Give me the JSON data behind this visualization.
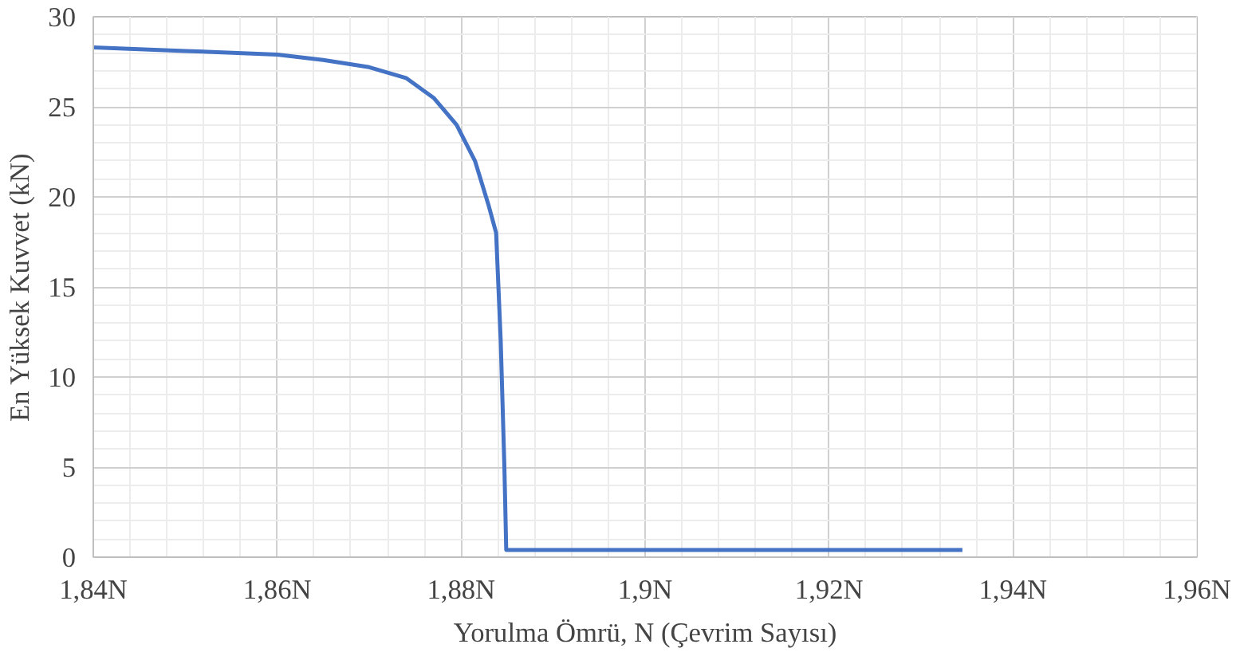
{
  "chart_data": {
    "type": "line",
    "xlabel": "Yorulma Ömrü, N (Çevrim Sayısı)",
    "ylabel": "En Yüksek Kuvvet (kN)",
    "x": [
      1.84,
      1.85,
      1.86,
      1.865,
      1.87,
      1.874,
      1.877,
      1.8795,
      1.8815,
      1.883,
      1.8838,
      1.8843,
      1.8847,
      1.8849,
      1.9345
    ],
    "series": [
      {
        "color": "#4472c4",
        "values": [
          28.3,
          28.1,
          27.9,
          27.6,
          27.2,
          26.6,
          25.5,
          24,
          22,
          19.5,
          18,
          12,
          5,
          0.4,
          0.4
        ]
      }
    ],
    "xlim": [
      1.84,
      1.96
    ],
    "ylim": [
      0,
      30
    ],
    "xticks": [
      {
        "value": 1.84,
        "label": "1,84N"
      },
      {
        "value": 1.86,
        "label": "1,86N"
      },
      {
        "value": 1.88,
        "label": "1,88N"
      },
      {
        "value": 1.9,
        "label": "1,9N"
      },
      {
        "value": 1.92,
        "label": "1,92N"
      },
      {
        "value": 1.94,
        "label": "1,94N"
      },
      {
        "value": 1.96,
        "label": "1,96N"
      }
    ],
    "yticks": [
      0,
      5,
      10,
      15,
      20,
      25,
      30
    ],
    "grid": true,
    "marker": "none",
    "line_style": "solid"
  }
}
